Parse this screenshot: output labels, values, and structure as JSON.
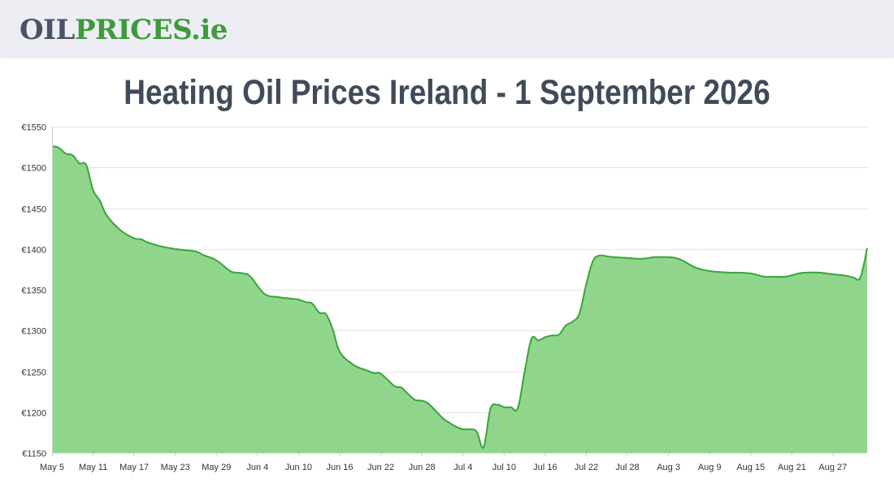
{
  "header": {
    "logo_part1": "OIL",
    "logo_part2": "PRICES.ie"
  },
  "colors": {
    "header_bg": "#eceef4",
    "logo_gray": "#4a5266",
    "logo_green": "#3e9a3a",
    "line": "#3aa33a",
    "fill": "#8fd68c",
    "grid": "#e6e6e6",
    "title": "#414a59"
  },
  "chart_data": {
    "type": "area",
    "title": "Heating Oil Prices Ireland - 1 September 2026",
    "xlabel": "",
    "ylabel": "",
    "ylim": [
      1150,
      1550
    ],
    "y_ticks": [
      1150,
      1200,
      1250,
      1300,
      1350,
      1400,
      1450,
      1500,
      1550
    ],
    "y_tick_labels": [
      "€1150",
      "€1200",
      "€1250",
      "€1300",
      "€1350",
      "€1400",
      "€1450",
      "€1500",
      "€1550"
    ],
    "x_range": [
      "May 5",
      "Sep 1"
    ],
    "x_ticks": [
      "May 5",
      "May 11",
      "May 17",
      "May 23",
      "May 29",
      "Jun 4",
      "Jun 10",
      "Jun 16",
      "Jun 22",
      "Jun 28",
      "Jul 4",
      "Jul 10",
      "Jul 16",
      "Jul 22",
      "Jul 28",
      "Aug 3",
      "Aug 9",
      "Aug 15",
      "Aug 21",
      "Aug 27"
    ],
    "grid": true,
    "legend": "none",
    "series": [
      {
        "x": [
          "May 5",
          "May 6",
          "May 7",
          "May 8",
          "May 9",
          "May 10",
          "May 11",
          "May 12",
          "May 13",
          "May 15",
          "May 17",
          "May 18",
          "May 19",
          "May 21",
          "May 23",
          "May 24",
          "May 26",
          "May 27",
          "May 29",
          "May 31",
          "Jun 1",
          "Jun 2",
          "Jun 3",
          "Jun 5",
          "Jun 7",
          "Jun 8",
          "Jun 9",
          "Jun 10",
          "Jun 11",
          "Jun 12",
          "Jun 13",
          "Jun 14",
          "Jun 15",
          "Jun 16",
          "Jun 18",
          "Jun 20",
          "Jun 21",
          "Jun 22",
          "Jun 24",
          "Jun 25",
          "Jun 26",
          "Jun 27",
          "Jun 28",
          "Jun 29",
          "Jul 1",
          "Jul 2",
          "Jul 3",
          "Jul 4",
          "Jul 5",
          "Jul 6",
          "Jul 7",
          "Jul 8",
          "Jul 9",
          "Jul 10",
          "Jul 11",
          "Jul 12",
          "Jul 13",
          "Jul 14",
          "Jul 15",
          "Jul 16",
          "Jul 17",
          "Jul 18",
          "Jul 19",
          "Jul 20",
          "Jul 21",
          "Jul 22",
          "Jul 23",
          "Jul 24",
          "Jul 25",
          "Jul 26",
          "Jul 28",
          "Jul 30",
          "Aug 1",
          "Aug 2",
          "Aug 3",
          "Aug 4",
          "Aug 5",
          "Aug 7",
          "Aug 9",
          "Aug 10",
          "Aug 12",
          "Aug 13",
          "Aug 15",
          "Aug 17",
          "Aug 18",
          "Aug 20",
          "Aug 22",
          "Aug 23",
          "Aug 25",
          "Aug 27",
          "Aug 29",
          "Aug 30",
          "Aug 31",
          "Sep 1"
        ],
        "y": [
          1526,
          1524,
          1517,
          1515,
          1505,
          1503,
          1472,
          1459,
          1441,
          1423,
          1413,
          1412,
          1408,
          1403,
          1400,
          1399,
          1397,
          1393,
          1386,
          1373,
          1371,
          1370,
          1366,
          1345,
          1341,
          1340,
          1339,
          1338,
          1335,
          1333,
          1322,
          1320,
          1301,
          1274,
          1258,
          1251,
          1248,
          1247,
          1232,
          1230,
          1222,
          1215,
          1214,
          1210,
          1193,
          1187,
          1182,
          1179,
          1179,
          1176,
          1157,
          1204,
          1209,
          1206,
          1206,
          1205,
          1250,
          1290,
          1288,
          1292,
          1294,
          1295,
          1306,
          1311,
          1321,
          1357,
          1386,
          1392,
          1391,
          1390,
          1389,
          1388,
          1390,
          1390,
          1390,
          1389,
          1386,
          1377,
          1373,
          1372,
          1371,
          1371,
          1370,
          1366,
          1366,
          1366,
          1370,
          1371,
          1371,
          1369,
          1367,
          1365,
          1365,
          1401
        ]
      }
    ]
  }
}
